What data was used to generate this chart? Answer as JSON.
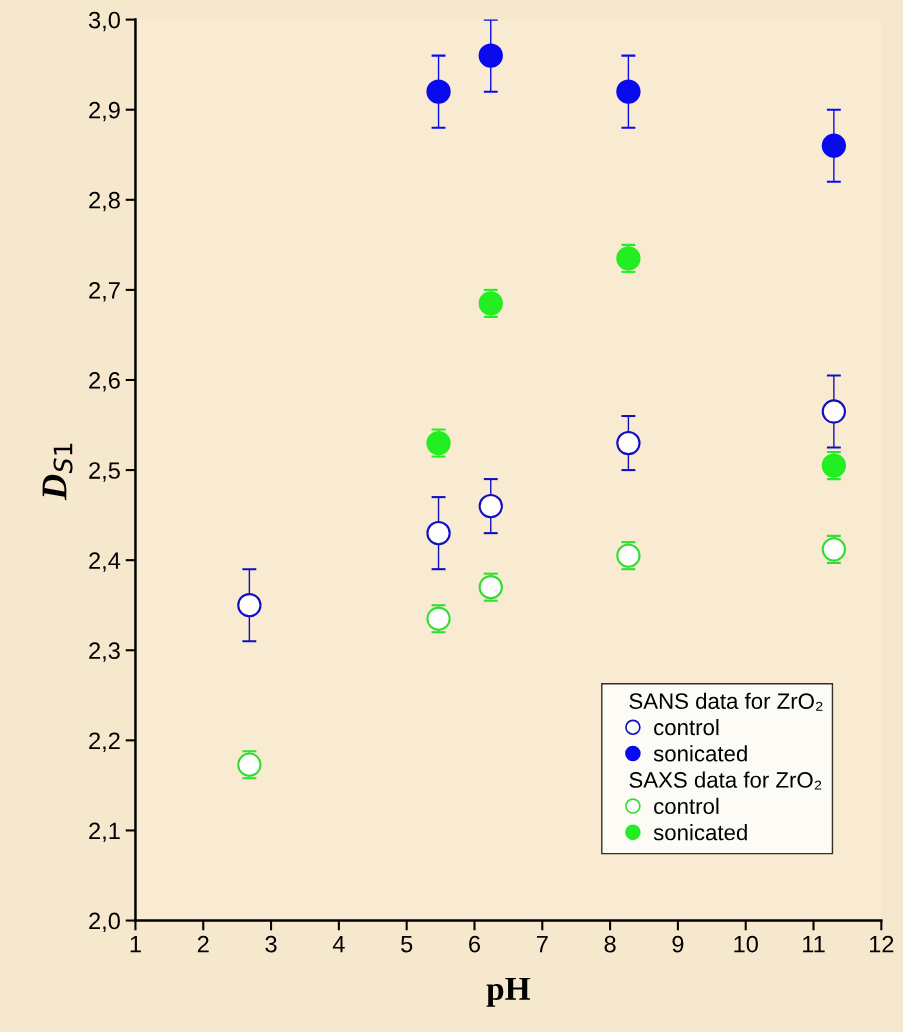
{
  "chart_data": {
    "type": "scatter",
    "xlabel": "pH",
    "ylabel": "D$_{S1}$",
    "xlim": [
      1,
      12
    ],
    "xticks": [
      1,
      2,
      3,
      4,
      5,
      6,
      7,
      8,
      9,
      10,
      11,
      12
    ],
    "ylim": [
      2.0,
      3.0
    ],
    "yticks": [
      {
        "value": 2.0,
        "label": "2,0"
      },
      {
        "value": 2.1,
        "label": "2,1"
      },
      {
        "value": 2.2,
        "label": "2,2"
      },
      {
        "value": 2.3,
        "label": "2,3"
      },
      {
        "value": 2.4,
        "label": "2,4"
      },
      {
        "value": 2.5,
        "label": "2,5"
      },
      {
        "value": 2.6,
        "label": "2,6"
      },
      {
        "value": 2.7,
        "label": "2,7"
      },
      {
        "value": 2.8,
        "label": "2,8"
      },
      {
        "value": 2.9,
        "label": "2,9"
      },
      {
        "value": 3.0,
        "label": "3,0"
      }
    ],
    "marker": "circle",
    "grid": false,
    "legend": "bottom right",
    "annotations": [
      "SANS data for ZrO₂",
      "SAXS data for ZrO₂"
    ],
    "series": [
      {
        "name": "control",
        "color": "#1010c0",
        "x": [
          2.68,
          5.47,
          6.24,
          8.27,
          11.3
        ],
        "values": [
          2.35,
          2.43,
          2.46,
          2.53,
          2.565
        ],
        "errors": [
          0.04,
          0.04,
          0.03,
          0.03,
          0.04
        ]
      },
      {
        "name": "sonicated",
        "color": "#0a0aee",
        "x": [
          5.47,
          6.24,
          8.27,
          11.3
        ],
        "values": [
          2.92,
          2.96,
          2.92,
          2.86
        ],
        "errors": [
          0.04,
          0.04,
          0.04,
          0.04
        ]
      },
      {
        "name": "control",
        "color": "#33dd33",
        "x": [
          2.68,
          5.47,
          6.24,
          8.27,
          11.3
        ],
        "values": [
          2.173,
          2.335,
          2.37,
          2.405,
          2.412
        ],
        "errors": [
          0.015,
          0.015,
          0.015,
          0.015,
          0.015
        ]
      },
      {
        "name": "sonicated",
        "color": "#22ee22",
        "x": [
          5.47,
          6.24,
          8.27,
          11.3
        ],
        "values": [
          2.53,
          2.685,
          2.735,
          2.505
        ],
        "errors": [
          0.015,
          0.015,
          0.015,
          0.015
        ]
      }
    ]
  }
}
